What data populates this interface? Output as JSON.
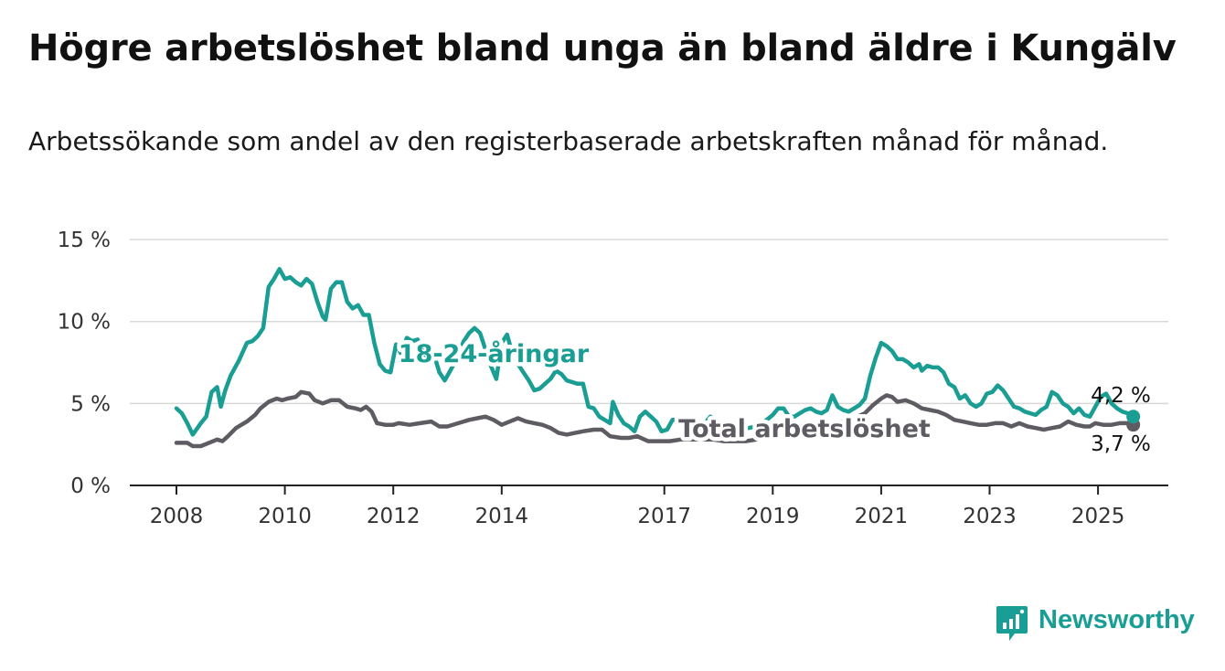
{
  "header": {
    "title": "Högre arbetslöshet bland unga än bland äldre i Kungälv",
    "subtitle": "Arbetssökande som andel av den registerbaserade arbetskraften månad för månad."
  },
  "brand": {
    "name": "Newsworthy",
    "color": "#199e95"
  },
  "chart_data": {
    "type": "line",
    "ylim": [
      0,
      15
    ],
    "xlim": [
      2007.7,
      2026.2
    ],
    "yticks": [
      {
        "value": 0,
        "label": "0 %"
      },
      {
        "value": 5,
        "label": "5 %"
      },
      {
        "value": 10,
        "label": "10 %"
      },
      {
        "value": 15,
        "label": "15 %"
      }
    ],
    "xticks": [
      {
        "value": 2008,
        "label": "2008"
      },
      {
        "value": 2010,
        "label": "2010"
      },
      {
        "value": 2012,
        "label": "2012"
      },
      {
        "value": 2014,
        "label": "2014"
      },
      {
        "value": 2017,
        "label": "2017"
      },
      {
        "value": 2019,
        "label": "2019"
      },
      {
        "value": 2021,
        "label": "2021"
      },
      {
        "value": 2023,
        "label": "2023"
      },
      {
        "value": 2025,
        "label": "2025"
      }
    ],
    "grid": true,
    "series": [
      {
        "name": "18-24-åringar",
        "color": "#1a9e94",
        "end_label": "4,2 %",
        "points": [
          [
            2008.0,
            4.7
          ],
          [
            2008.1,
            4.4
          ],
          [
            2008.2,
            3.8
          ],
          [
            2008.3,
            3.1
          ],
          [
            2008.45,
            3.8
          ],
          [
            2008.55,
            4.2
          ],
          [
            2008.65,
            5.7
          ],
          [
            2008.75,
            6.0
          ],
          [
            2008.82,
            4.8
          ],
          [
            2008.9,
            5.8
          ],
          [
            2009.0,
            6.7
          ],
          [
            2009.15,
            7.6
          ],
          [
            2009.3,
            8.7
          ],
          [
            2009.4,
            8.8
          ],
          [
            2009.5,
            9.1
          ],
          [
            2009.6,
            9.6
          ],
          [
            2009.7,
            12.1
          ],
          [
            2009.8,
            12.6
          ],
          [
            2009.9,
            13.2
          ],
          [
            2010.0,
            12.6
          ],
          [
            2010.1,
            12.7
          ],
          [
            2010.2,
            12.4
          ],
          [
            2010.3,
            12.2
          ],
          [
            2010.4,
            12.6
          ],
          [
            2010.5,
            12.3
          ],
          [
            2010.6,
            11.2
          ],
          [
            2010.7,
            10.3
          ],
          [
            2010.75,
            10.1
          ],
          [
            2010.85,
            12.0
          ],
          [
            2010.95,
            12.4
          ],
          [
            2011.05,
            12.4
          ],
          [
            2011.15,
            11.2
          ],
          [
            2011.25,
            10.8
          ],
          [
            2011.35,
            11.0
          ],
          [
            2011.45,
            10.4
          ],
          [
            2011.55,
            10.4
          ],
          [
            2011.65,
            8.7
          ],
          [
            2011.75,
            7.4
          ],
          [
            2011.85,
            7.0
          ],
          [
            2011.95,
            6.9
          ],
          [
            2012.05,
            8.6
          ],
          [
            2012.15,
            8.0
          ],
          [
            2012.25,
            9.0
          ],
          [
            2012.35,
            8.8
          ],
          [
            2012.45,
            8.9
          ],
          [
            2012.55,
            8.1
          ],
          [
            2012.65,
            7.8
          ],
          [
            2012.75,
            8.0
          ],
          [
            2012.85,
            6.9
          ],
          [
            2012.95,
            6.4
          ],
          [
            2013.05,
            7.0
          ],
          [
            2013.15,
            7.6
          ],
          [
            2013.3,
            8.8
          ],
          [
            2013.4,
            9.3
          ],
          [
            2013.5,
            9.6
          ],
          [
            2013.6,
            9.3
          ],
          [
            2013.7,
            8.3
          ],
          [
            2013.8,
            7.3
          ],
          [
            2013.9,
            6.5
          ],
          [
            2014.0,
            8.7
          ],
          [
            2014.1,
            9.2
          ],
          [
            2014.2,
            8.0
          ],
          [
            2014.3,
            7.4
          ],
          [
            2014.4,
            6.9
          ],
          [
            2014.5,
            6.4
          ],
          [
            2014.6,
            5.8
          ],
          [
            2014.7,
            5.9
          ],
          [
            2014.8,
            6.2
          ],
          [
            2014.9,
            6.5
          ],
          [
            2015.0,
            7.0
          ],
          [
            2015.1,
            6.8
          ],
          [
            2015.2,
            6.4
          ],
          [
            2015.3,
            6.3
          ],
          [
            2015.4,
            6.2
          ],
          [
            2015.5,
            6.2
          ],
          [
            2015.6,
            4.8
          ],
          [
            2015.7,
            4.7
          ],
          [
            2015.8,
            4.2
          ],
          [
            2015.9,
            4.0
          ],
          [
            2016.0,
            3.8
          ],
          [
            2016.05,
            5.1
          ],
          [
            2016.15,
            4.3
          ],
          [
            2016.25,
            3.8
          ],
          [
            2016.35,
            3.6
          ],
          [
            2016.45,
            3.3
          ],
          [
            2016.55,
            4.2
          ],
          [
            2016.65,
            4.5
          ],
          [
            2016.75,
            4.2
          ],
          [
            2016.85,
            3.9
          ],
          [
            2016.95,
            3.3
          ],
          [
            2017.05,
            3.4
          ],
          [
            2017.15,
            4.0
          ],
          [
            2017.25,
            4.0
          ],
          [
            2017.35,
            4.1
          ],
          [
            2017.45,
            3.8
          ],
          [
            2017.55,
            3.3
          ],
          [
            2017.65,
            3.3
          ],
          [
            2017.75,
            3.8
          ],
          [
            2017.85,
            4.2
          ],
          [
            2017.95,
            3.9
          ],
          [
            2018.1,
            3.7
          ],
          [
            2018.25,
            3.5
          ],
          [
            2018.4,
            3.4
          ],
          [
            2018.55,
            3.5
          ],
          [
            2018.7,
            3.6
          ],
          [
            2018.85,
            3.9
          ],
          [
            2019.0,
            4.3
          ],
          [
            2019.1,
            4.7
          ],
          [
            2019.2,
            4.7
          ],
          [
            2019.3,
            4.2
          ],
          [
            2019.4,
            4.2
          ],
          [
            2019.5,
            4.4
          ],
          [
            2019.6,
            4.6
          ],
          [
            2019.7,
            4.7
          ],
          [
            2019.8,
            4.5
          ],
          [
            2019.9,
            4.4
          ],
          [
            2020.0,
            4.6
          ],
          [
            2020.1,
            5.5
          ],
          [
            2020.2,
            4.8
          ],
          [
            2020.3,
            4.6
          ],
          [
            2020.4,
            4.5
          ],
          [
            2020.5,
            4.7
          ],
          [
            2020.6,
            4.9
          ],
          [
            2020.7,
            5.3
          ],
          [
            2020.8,
            6.7
          ],
          [
            2020.9,
            7.8
          ],
          [
            2021.0,
            8.7
          ],
          [
            2021.1,
            8.5
          ],
          [
            2021.2,
            8.2
          ],
          [
            2021.3,
            7.7
          ],
          [
            2021.4,
            7.7
          ],
          [
            2021.5,
            7.5
          ],
          [
            2021.6,
            7.2
          ],
          [
            2021.7,
            7.4
          ],
          [
            2021.75,
            7.0
          ],
          [
            2021.85,
            7.3
          ],
          [
            2021.95,
            7.2
          ],
          [
            2022.05,
            7.2
          ],
          [
            2022.15,
            6.9
          ],
          [
            2022.25,
            6.2
          ],
          [
            2022.35,
            6.0
          ],
          [
            2022.45,
            5.3
          ],
          [
            2022.55,
            5.5
          ],
          [
            2022.65,
            5.0
          ],
          [
            2022.75,
            4.8
          ],
          [
            2022.85,
            5.0
          ],
          [
            2022.95,
            5.6
          ],
          [
            2023.05,
            5.7
          ],
          [
            2023.15,
            6.1
          ],
          [
            2023.25,
            5.8
          ],
          [
            2023.35,
            5.3
          ],
          [
            2023.45,
            4.8
          ],
          [
            2023.55,
            4.7
          ],
          [
            2023.65,
            4.5
          ],
          [
            2023.75,
            4.4
          ],
          [
            2023.85,
            4.3
          ],
          [
            2023.95,
            4.6
          ],
          [
            2024.05,
            4.8
          ],
          [
            2024.15,
            5.7
          ],
          [
            2024.25,
            5.5
          ],
          [
            2024.35,
            5.0
          ],
          [
            2024.45,
            4.8
          ],
          [
            2024.55,
            4.4
          ],
          [
            2024.65,
            4.7
          ],
          [
            2024.75,
            4.3
          ],
          [
            2024.85,
            4.2
          ],
          [
            2024.95,
            4.8
          ],
          [
            2025.05,
            5.4
          ],
          [
            2025.15,
            5.6
          ],
          [
            2025.25,
            5.0
          ],
          [
            2025.35,
            4.7
          ],
          [
            2025.45,
            4.5
          ],
          [
            2025.55,
            4.4
          ],
          [
            2025.65,
            4.2
          ]
        ]
      },
      {
        "name": "Total arbetslöshet",
        "color": "#5e5b62",
        "end_label": "3,7 %",
        "points": [
          [
            2008.0,
            2.6
          ],
          [
            2008.2,
            2.6
          ],
          [
            2008.3,
            2.4
          ],
          [
            2008.45,
            2.4
          ],
          [
            2008.6,
            2.6
          ],
          [
            2008.75,
            2.8
          ],
          [
            2008.85,
            2.7
          ],
          [
            2008.95,
            3.0
          ],
          [
            2009.1,
            3.5
          ],
          [
            2009.3,
            3.9
          ],
          [
            2009.45,
            4.3
          ],
          [
            2009.55,
            4.7
          ],
          [
            2009.7,
            5.1
          ],
          [
            2009.85,
            5.3
          ],
          [
            2009.95,
            5.2
          ],
          [
            2010.05,
            5.3
          ],
          [
            2010.2,
            5.4
          ],
          [
            2010.3,
            5.7
          ],
          [
            2010.45,
            5.6
          ],
          [
            2010.55,
            5.2
          ],
          [
            2010.7,
            5.0
          ],
          [
            2010.85,
            5.2
          ],
          [
            2011.0,
            5.2
          ],
          [
            2011.15,
            4.8
          ],
          [
            2011.3,
            4.7
          ],
          [
            2011.4,
            4.6
          ],
          [
            2011.5,
            4.8
          ],
          [
            2011.6,
            4.5
          ],
          [
            2011.7,
            3.8
          ],
          [
            2011.85,
            3.7
          ],
          [
            2012.0,
            3.7
          ],
          [
            2012.1,
            3.8
          ],
          [
            2012.3,
            3.7
          ],
          [
            2012.5,
            3.8
          ],
          [
            2012.7,
            3.9
          ],
          [
            2012.85,
            3.6
          ],
          [
            2013.0,
            3.6
          ],
          [
            2013.2,
            3.8
          ],
          [
            2013.4,
            4.0
          ],
          [
            2013.55,
            4.1
          ],
          [
            2013.7,
            4.2
          ],
          [
            2013.85,
            4.0
          ],
          [
            2014.0,
            3.7
          ],
          [
            2014.15,
            3.9
          ],
          [
            2014.3,
            4.1
          ],
          [
            2014.45,
            3.9
          ],
          [
            2014.6,
            3.8
          ],
          [
            2014.75,
            3.7
          ],
          [
            2014.9,
            3.5
          ],
          [
            2015.05,
            3.2
          ],
          [
            2015.2,
            3.1
          ],
          [
            2015.35,
            3.2
          ],
          [
            2015.5,
            3.3
          ],
          [
            2015.7,
            3.4
          ],
          [
            2015.85,
            3.4
          ],
          [
            2016.0,
            3.0
          ],
          [
            2016.2,
            2.9
          ],
          [
            2016.35,
            2.9
          ],
          [
            2016.5,
            3.0
          ],
          [
            2016.7,
            2.7
          ],
          [
            2016.9,
            2.7
          ],
          [
            2017.1,
            2.7
          ],
          [
            2017.3,
            2.8
          ],
          [
            2017.5,
            2.8
          ],
          [
            2017.7,
            2.8
          ],
          [
            2017.9,
            2.8
          ],
          [
            2018.1,
            2.7
          ],
          [
            2018.3,
            2.7
          ],
          [
            2018.5,
            2.7
          ],
          [
            2018.7,
            2.8
          ],
          [
            2018.9,
            2.9
          ],
          [
            2019.1,
            3.0
          ],
          [
            2019.3,
            3.1
          ],
          [
            2019.5,
            3.2
          ],
          [
            2019.7,
            3.4
          ],
          [
            2019.9,
            3.6
          ],
          [
            2020.1,
            3.8
          ],
          [
            2020.3,
            3.9
          ],
          [
            2020.5,
            4.1
          ],
          [
            2020.7,
            4.4
          ],
          [
            2020.85,
            4.9
          ],
          [
            2021.0,
            5.3
          ],
          [
            2021.1,
            5.5
          ],
          [
            2021.2,
            5.4
          ],
          [
            2021.3,
            5.1
          ],
          [
            2021.45,
            5.2
          ],
          [
            2021.6,
            5.0
          ],
          [
            2021.75,
            4.7
          ],
          [
            2021.9,
            4.6
          ],
          [
            2022.05,
            4.5
          ],
          [
            2022.2,
            4.3
          ],
          [
            2022.35,
            4.0
          ],
          [
            2022.5,
            3.9
          ],
          [
            2022.65,
            3.8
          ],
          [
            2022.8,
            3.7
          ],
          [
            2022.95,
            3.7
          ],
          [
            2023.1,
            3.8
          ],
          [
            2023.25,
            3.8
          ],
          [
            2023.4,
            3.6
          ],
          [
            2023.55,
            3.8
          ],
          [
            2023.7,
            3.6
          ],
          [
            2023.85,
            3.5
          ],
          [
            2024.0,
            3.4
          ],
          [
            2024.15,
            3.5
          ],
          [
            2024.3,
            3.6
          ],
          [
            2024.45,
            3.9
          ],
          [
            2024.6,
            3.7
          ],
          [
            2024.75,
            3.6
          ],
          [
            2024.85,
            3.6
          ],
          [
            2024.95,
            3.8
          ],
          [
            2025.1,
            3.7
          ],
          [
            2025.25,
            3.7
          ],
          [
            2025.4,
            3.8
          ],
          [
            2025.55,
            3.8
          ],
          [
            2025.65,
            3.7
          ]
        ]
      }
    ]
  }
}
